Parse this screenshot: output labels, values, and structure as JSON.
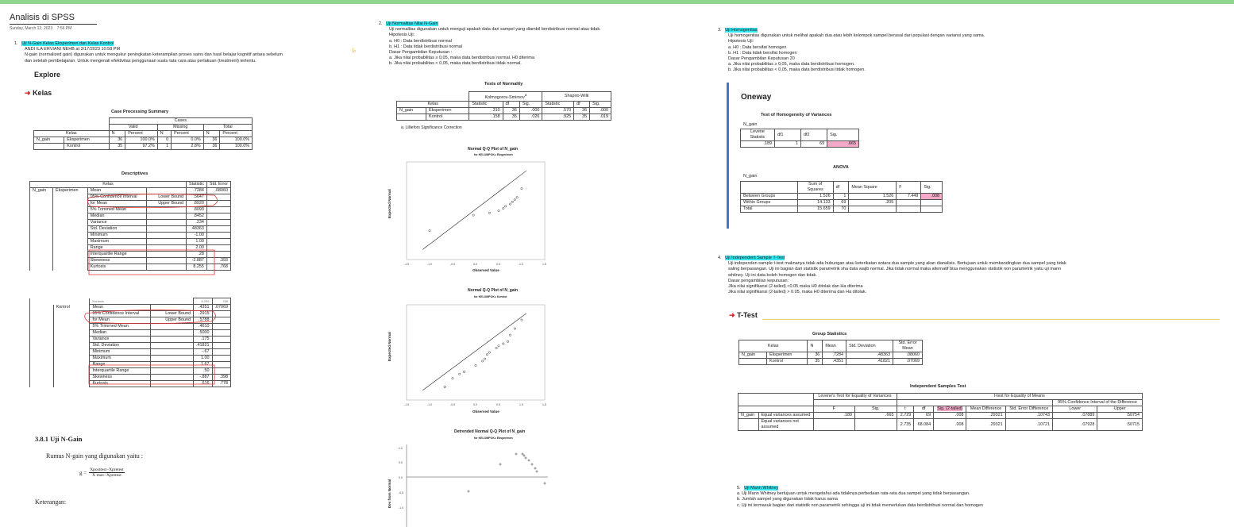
{
  "page": {
    "title": "Analisis di SPSS",
    "date": "Sunday, March 12, 2023",
    "time": "7:56 PM"
  },
  "col1": {
    "item1_num": "1.",
    "item1_title": "Uji N-Gain Kelas Eksperimen dan Kelas Kontrol",
    "item1_author": "ANDI ILA ERVIANI NEHB at 3/17/2023 10:58 PM",
    "item1_line1": "N-gain (normalized gain) digunakan untuk mengukur peningkatan keterampilan proses sains dan hasil belajar kognitif antara sebelum",
    "item1_line2": "dan setelah pembelajaran. Untuk mengenali efektivitas penggunaan suatu tata cara atau perlakuan (treatment) tertentu.",
    "explore": "Explore",
    "kelas_heading": "Kelas",
    "cps_title": "Case Processing Summary",
    "cps": {
      "cases": "Cases",
      "valid": "Valid",
      "missing": "Missing",
      "total": "Total",
      "kelas": "Kelas",
      "n": "N",
      "percent": "Percent",
      "rows": [
        {
          "var": "N_gain",
          "group": "Eksperimen",
          "vn": "36",
          "vp": "100.0%",
          "mn": "0",
          "mp": "0.0%",
          "tn": "36",
          "tp": "100.0%"
        },
        {
          "var": "",
          "group": "Kontrol",
          "vn": "35",
          "vp": "97.2%",
          "mn": "1",
          "mp": "2.8%",
          "tn": "36",
          "tp": "100.0%"
        }
      ]
    },
    "desc_title": "Descriptives",
    "desc": {
      "kelas": "Kelas",
      "statistic": "Statistic",
      "std_error": "Std. Error",
      "var": "N_gain",
      "eks_group": "Eksperimen",
      "eks_rows": [
        {
          "label": "Mean",
          "sub": "",
          "stat": ".7284",
          "se": ".08060"
        },
        {
          "label": "95% Confidence Interval",
          "sub": "Lower Bound",
          "stat": ".5647",
          "se": ""
        },
        {
          "label": "for Mean",
          "sub": "Upper Bound",
          "stat": ".8920",
          "se": ""
        },
        {
          "label": "5% Trimmed Mean",
          "sub": "",
          "stat": ".8093",
          "se": ""
        },
        {
          "label": "Median",
          "sub": "",
          "stat": ".8452",
          "se": ""
        },
        {
          "label": "Variance",
          "sub": "",
          "stat": ".234",
          "se": ""
        },
        {
          "label": "Std. Deviation",
          "sub": "",
          "stat": ".48363",
          "se": ""
        },
        {
          "label": "Minimum",
          "sub": "",
          "stat": "-1.00",
          "se": ""
        },
        {
          "label": "Maximum",
          "sub": "",
          "stat": "1.00",
          "se": ""
        },
        {
          "label": "Range",
          "sub": "",
          "stat": "2.00",
          "se": ""
        },
        {
          "label": "Interquartile Range",
          "sub": "",
          "stat": ".28",
          "se": ""
        },
        {
          "label": "Skewness",
          "sub": "",
          "stat": "-2.887",
          "se": ".393"
        },
        {
          "label": "Kurtosis",
          "sub": "",
          "stat": "8.255",
          "se": ".768"
        }
      ],
      "kon_partial": {
        "label": "Kurtosis",
        "stat": "8.255",
        "se": ".768"
      },
      "kon_group": "Kontrol",
      "kon_rows": [
        {
          "label": "Mean",
          "sub": "",
          "stat": ".4351",
          "se": ".07069"
        },
        {
          "label": "95% Confidence Interval",
          "sub": "Lower Bound",
          "stat": ".2915",
          "se": ""
        },
        {
          "label": "for Mean",
          "sub": "Upper Bound",
          "stat": ".5788",
          "se": ""
        },
        {
          "label": "5% Trimmed Mean",
          "sub": "",
          "stat": ".4610",
          "se": ""
        },
        {
          "label": "Median",
          "sub": "",
          "stat": ".5000",
          "se": ""
        },
        {
          "label": "Variance",
          "sub": "",
          "stat": ".175",
          "se": ""
        },
        {
          "label": "Std. Deviation",
          "sub": "",
          "stat": ".41821",
          "se": ""
        },
        {
          "label": "Minimum",
          "sub": "",
          "stat": "-.67",
          "se": ""
        },
        {
          "label": "Maximum",
          "sub": "",
          "stat": "1.00",
          "se": ""
        },
        {
          "label": "Range",
          "sub": "",
          "stat": "1.67",
          "se": ""
        },
        {
          "label": "Interquartile Range",
          "sub": "",
          "stat": ".50",
          "se": ""
        },
        {
          "label": "Skewness",
          "sub": "",
          "stat": "-.887",
          "se": ".398"
        },
        {
          "label": "Kurtosis",
          "sub": "",
          "stat": ".616",
          "se": ".778"
        }
      ]
    },
    "sec381": "3.8.1    Uji N-Gain",
    "rumus": "Rumus N-gain yang digunakan yaitu :",
    "formula_lhs": "g =",
    "formula_num": "Xposttest−Xpretest",
    "formula_den": "X max−Xpretest",
    "keterangan": "Keterangan:"
  },
  "col2": {
    "num": "2.",
    "title": "Uji Normalitas Nilai N-Gain",
    "lines": [
      "Uji normalitas digunakan untuk menguji apakah data dari sampel yang diambil berdistribusi normal atau tidak.",
      "Hipotesis Uji:",
      "a. H0 : Data berdistribusi normal",
      "b. H1 : Data tidak berdistribusi normal",
      "Dasar Pengambilan Keputusan :",
      "a. Jika nilai probabilitas ≥ 0,05, maka data berdistribusi normal. H0 diterima",
      "b. Jika nilai probabilitas < 0,05, maka data berdistribusi tidak normal."
    ],
    "tn_title": "Tests of Normality",
    "tn": {
      "ks": "Kolmogorov-Smirnov",
      "ks_sup": "a",
      "sw": "Shapiro-Wilk",
      "kelas": "Kelas",
      "statistic": "Statistic",
      "df": "df",
      "sig": "Sig.",
      "var": "N_gain",
      "rows": [
        {
          "group": "Eksperimen",
          "ks_stat": ".310",
          "ks_df": "36",
          "ks_sig": ".000",
          "sw_stat": ".570",
          "sw_df": "36",
          "sw_sig": ".000"
        },
        {
          "group": "Kontrol",
          "ks_stat": ".158",
          "ks_df": "35",
          "ks_sig": ".026",
          "sw_stat": ".925",
          "sw_df": "35",
          "sw_sig": ".019"
        }
      ],
      "note": "a. Lilliefors Significance Correction"
    },
    "plot1_title": "Normal Q-Q Plot of N_gain",
    "plot1_sub": "for KELOMPOK= Eksperimen",
    "plot2_title": "Normal Q-Q Plot of N_gain",
    "plot2_sub": "for KELOMPOK= Kontrol",
    "plot3_title": "Detrended Normal Q-Q Plot of N_gain",
    "plot3_sub": "for KELOMPOK= Eksperimen",
    "xlabel": "Observed Value",
    "ylabel": "Expected Normal",
    "ylabel3": "Dev from Normal",
    "xticks": [
      "-1.5",
      "-1.0",
      "-0.5",
      "0.0",
      "0.5",
      "1.0",
      "1.5"
    ]
  },
  "col3": {
    "num3": "3.",
    "title3": "Uji Homogenitas",
    "lines3": [
      "Uji homogenitas digunakan untuk melihat apakah dua atau lebih kelompok sampel berasal dari populasi dengan variansi yang sama.",
      "Hipotesis Uji:",
      "a. H0 : Data bersifat homogen",
      "b. H1 : Data tidak bersifat homogen",
      "Dasar Pengambilan Keputusan 20",
      "a. Jika nilai probabilitas ≥ 0,05, maka data berdistribusi homogen.",
      "b. Jika nilai probabilitas < 0,05, maka data berdistribusi tidak homogen."
    ],
    "oneway": "Oneway",
    "hv_title": "Test of Homogeneity of Variances",
    "hv_var": "N_gain",
    "hv": {
      "levene": "Levene Statistic",
      "df1": "df1",
      "df2": "df2",
      "sig": "Sig.",
      "v_levene": ".189",
      "v_df1": "1",
      "v_df2": "69",
      "v_sig": ".665"
    },
    "anova_title": "ANOVA",
    "anova_var": "N_gain",
    "anova": {
      "h_ss": "Sum of Squares",
      "h_df": "df",
      "h_ms": "Mean Square",
      "h_f": "F",
      "h_sig": "Sig.",
      "rows": [
        {
          "label": "Between Groups",
          "ss": "1.526",
          "df": "1",
          "ms": "1.526",
          "f": "7.449",
          "sig": ".008"
        },
        {
          "label": "Within Groups",
          "ss": "14.133",
          "df": "69",
          "ms": ".205",
          "f": "",
          "sig": ""
        },
        {
          "label": "Total",
          "ss": "15.659",
          "df": "70",
          "ms": "",
          "f": "",
          "sig": ""
        }
      ]
    },
    "num4": "4.",
    "title4": "Uji Independent Sample T-Test",
    "lines4": [
      "Uji independen sample t-test maknanya tidak ada hubungan atau keterikatan antara dua sample yang akan dianalisis. Bertujuan untuk membandingkan dua sampel yang tidak",
      "saling berpasangan.  Uji ini bagian dari statistik parametrik sha data wajib normal. Jika tidak normal maka alternatif bisa menggunakan statistik non parametrik yaitu uji mann",
      "whitney. Uji ini data boleh homogen dan tidak.",
      "Dasar pengambilan keputusan:",
      "Jika nilai signifikansi (2-tailed) <0.05 maka H0 ditolak dan Ha diterima",
      "Jika nilai signifikansi (2-tailed) > 0.05, maka H0 diterima dan  Ha ditolak."
    ],
    "ttest": "T-Test",
    "gs_title": "Group Statistics",
    "gs": {
      "kelas": "Kelas",
      "n": "N",
      "mean": "Mean",
      "sd": "Std. Deviation",
      "sem": "Std. Error Mean",
      "var": "N_gain",
      "rows": [
        {
          "group": "Eksperimen",
          "n": "36",
          "mean": ".7284",
          "sd": ".48363",
          "sem": ".08060"
        },
        {
          "group": "Kontrol",
          "n": "35",
          "mean": ".4351",
          "sd": ".41821",
          "sem": ".07069"
        }
      ]
    },
    "ist_title": "Independent Samples Test",
    "ist": {
      "levene": "Levene's Test for Equality of Variances",
      "ttest": "t-test for Equality of Means",
      "ci": "95% Confidence Interval of the Difference",
      "f": "F",
      "sig": "Sig.",
      "t": "t",
      "df": "df",
      "sig2": "Sig. (2-tailed)",
      "md": "Mean Difference",
      "sed": "Std. Error Difference",
      "lower": "Lower",
      "upper": "Upper",
      "var": "N_gain",
      "rows": [
        {
          "label": "Equal variances assumed",
          "f": ".189",
          "sig": ".665",
          "t": "2.729",
          "df": "69",
          "sig2": ".008",
          "md": ".29321",
          "sed": ".10743",
          "lo": ".07889",
          "up": ".50754"
        },
        {
          "label": "Equal variances not assumed",
          "f": "",
          "sig": "",
          "t": "2.735",
          "df": "68.084",
          "sig2": ".008",
          "md": ".29321",
          "sed": ".10721",
          "lo": ".07928",
          "up": ".50715"
        }
      ]
    },
    "num5": "5.",
    "title5": "Uji Mann Whitney",
    "lines5": [
      "a.   Uji Mann Whitney bertujuan untuk mengetahui ada tidaknya perbedaan rata-rata dua sampel yang  tidak berpasangan.",
      "b.   Jumlah sampel yang digunakan tidak harus sama",
      "c.   Uji ini termasuk bagian dari statistik non parametrik sehingga uji ini tidak memerlukan data berdistribusi normal dan homogen"
    ]
  },
  "chart_data": [
    {
      "type": "scatter",
      "title": "Normal Q-Q Plot of N_gain",
      "subtitle": "for KELOMPOK= Eksperimen",
      "xlabel": "Observed Value",
      "ylabel": "Expected Normal",
      "xlim": [
        -1.5,
        1.5
      ],
      "x": [
        -1.0,
        -0.05,
        0.3,
        0.5,
        0.6,
        0.65,
        0.75,
        0.8,
        0.85,
        0.9,
        1.0
      ],
      "y": [
        -0.9,
        -0.2,
        -0.1,
        0.0,
        0.1,
        0.2,
        0.3,
        0.4,
        0.5,
        0.6,
        1.0
      ]
    },
    {
      "type": "scatter",
      "title": "Normal Q-Q Plot of N_gain",
      "subtitle": "for KELOMPOK= Kontrol",
      "xlabel": "Observed Value",
      "ylabel": "Expected Normal",
      "xlim": [
        -1.0,
        1.5
      ],
      "x": [
        -0.67,
        -0.5,
        -0.35,
        -0.25,
        0.0,
        0.15,
        0.2,
        0.25,
        0.3,
        0.45,
        0.5,
        0.6,
        0.7,
        0.75,
        0.85,
        1.0
      ],
      "y": [
        -1.6,
        -1.2,
        -1.0,
        -0.9,
        -0.6,
        -0.4,
        -0.3,
        -0.1,
        0.0,
        0.2,
        0.3,
        0.4,
        0.5,
        0.8,
        1.1,
        1.5
      ]
    }
  ]
}
